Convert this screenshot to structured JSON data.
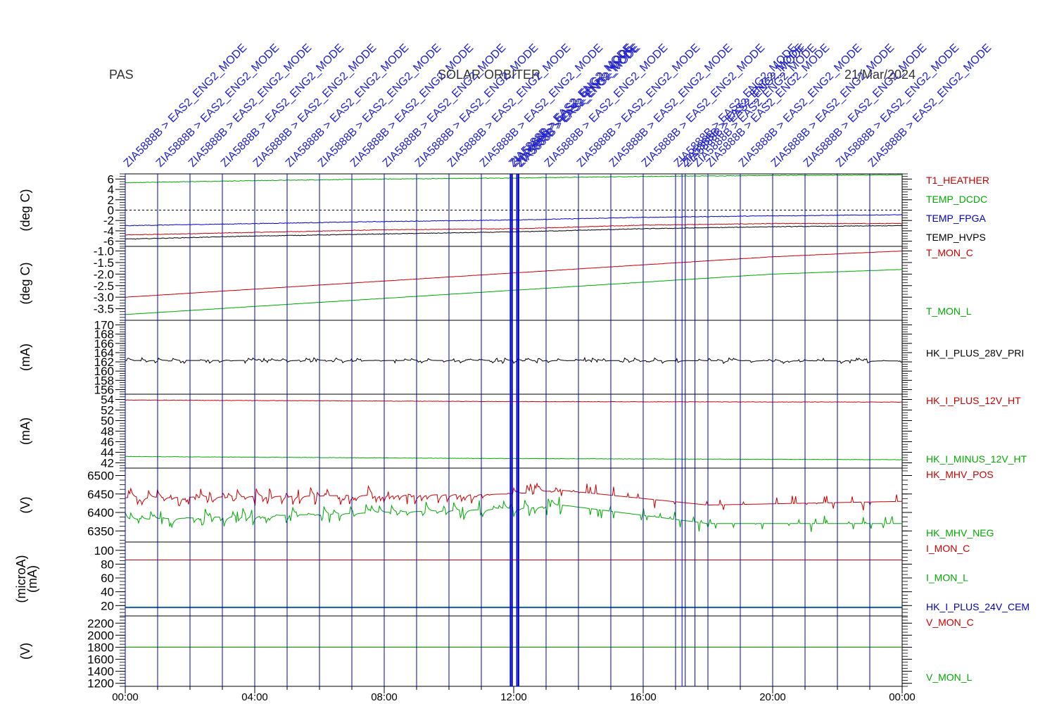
{
  "header": {
    "left": "PAS",
    "center": "SOLAR ORBITER",
    "right": "21/Mar/2024"
  },
  "colors": {
    "red": "#cc0000",
    "green": "#00aa00",
    "blue": "#0000cc",
    "black": "#000000",
    "mode": "#2222cc"
  },
  "event_label": "ZIA5888B > EAS2_ENG2_MODE",
  "chart_data": [
    {
      "type": "line",
      "panel": "temperature",
      "ylabel": "(deg C)",
      "ylim": [
        -7,
        7
      ],
      "ticks": [
        "6",
        "4",
        "2",
        "0",
        "-2",
        "-4",
        "-6"
      ],
      "tick_values": [
        6,
        4,
        2,
        0,
        -2,
        -4,
        -6
      ],
      "zero_line": true,
      "series": [
        {
          "name": "T1_HEATHER",
          "color": "#cc0000",
          "x": [
            0,
            4,
            8,
            12,
            16,
            20,
            24
          ],
          "y": [
            -4.8,
            -4.3,
            -3.8,
            -3.6,
            -2.9,
            -2.6,
            -2.6
          ]
        },
        {
          "name": "TEMP_DCDC",
          "color": "#00aa00",
          "x": [
            0,
            4,
            8,
            12,
            16,
            20,
            24
          ],
          "y": [
            5.3,
            5.7,
            6.0,
            6.2,
            6.5,
            6.7,
            6.8
          ]
        },
        {
          "name": "TEMP_FPGA",
          "color": "#0000cc",
          "x": [
            0,
            4,
            8,
            12,
            16,
            20,
            24
          ],
          "y": [
            -3.0,
            -2.6,
            -2.2,
            -1.9,
            -1.4,
            -1.1,
            -0.9
          ]
        },
        {
          "name": "TEMP_HVPS",
          "color": "#000000",
          "x": [
            0,
            4,
            8,
            12,
            16,
            20,
            24
          ],
          "y": [
            -5.6,
            -5.0,
            -4.6,
            -4.2,
            -3.6,
            -3.2,
            -3.0
          ]
        }
      ]
    },
    {
      "type": "line",
      "panel": "monitor-temperature",
      "ylabel": "(deg C)",
      "ylim": [
        -4.0,
        -0.8
      ],
      "ticks": [
        "-1.0",
        "-1.5",
        "-2.0",
        "-2.5",
        "-3.0",
        "-3.5"
      ],
      "tick_values": [
        -1.0,
        -1.5,
        -2.0,
        -2.5,
        -3.0,
        -3.5
      ],
      "series": [
        {
          "name": "T_MON_C",
          "color": "#cc0000",
          "x": [
            0,
            4,
            8,
            12,
            16,
            20,
            24
          ],
          "y": [
            -3.0,
            -2.65,
            -2.3,
            -1.95,
            -1.6,
            -1.25,
            -1.0
          ]
        },
        {
          "name": "T_MON_L",
          "color": "#00aa00",
          "x": [
            0,
            4,
            8,
            12,
            16,
            20,
            24
          ],
          "y": [
            -3.75,
            -3.4,
            -3.05,
            -2.7,
            -2.35,
            -2.0,
            -1.8
          ]
        }
      ]
    },
    {
      "type": "line",
      "panel": "primary-current",
      "ylabel": "(mA)",
      "ylim": [
        155,
        171
      ],
      "ticks": [
        "170",
        "168",
        "166",
        "164",
        "162",
        "160",
        "158",
        "156"
      ],
      "tick_values": [
        170,
        168,
        166,
        164,
        162,
        160,
        158,
        156
      ],
      "series": [
        {
          "name": "HK_I_PLUS_28V_PRI",
          "color": "#000000",
          "x": [
            0,
            12,
            24
          ],
          "y": [
            162.3,
            162.3,
            162.2
          ]
        }
      ]
    },
    {
      "type": "line",
      "panel": "heater-current",
      "ylabel": "(mA)",
      "ylim": [
        41,
        55
      ],
      "ticks": [
        "54",
        "52",
        "50",
        "48",
        "46",
        "44",
        "42"
      ],
      "tick_values": [
        54,
        52,
        50,
        48,
        46,
        44,
        42
      ],
      "series": [
        {
          "name": "HK_I_PLUS_12V_HT",
          "color": "#cc0000",
          "x": [
            0,
            12,
            24
          ],
          "y": [
            53.9,
            53.6,
            53.5
          ]
        },
        {
          "name": "HK_I_MINUS_12V_HT",
          "color": "#00aa00",
          "x": [
            0,
            12,
            24
          ],
          "y": [
            43.2,
            42.8,
            42.6
          ]
        }
      ]
    },
    {
      "type": "line",
      "panel": "high-voltage",
      "ylabel": "(V)",
      "ylim": [
        6320,
        6520
      ],
      "ticks": [
        "6500",
        "6450",
        "6400",
        "6350"
      ],
      "tick_values": [
        6500,
        6450,
        6400,
        6350
      ],
      "series": [
        {
          "name": "HK_MHV_POS",
          "color": "#cc0000",
          "x": [
            0,
            12,
            13.5,
            18,
            24
          ],
          "y": [
            6440,
            6450,
            6460,
            6420,
            6430
          ]
        },
        {
          "name": "HK_MHV_NEG",
          "color": "#00aa00",
          "x": [
            0,
            12,
            13.5,
            18,
            24
          ],
          "y": [
            6380,
            6410,
            6420,
            6370,
            6370
          ]
        }
      ]
    },
    {
      "type": "line",
      "panel": "monitor-current",
      "ylabel": "(microA)",
      "ylabel2": "(mA)",
      "ylim": [
        5,
        112
      ],
      "ticks": [
        "100",
        "80",
        "60",
        "40",
        "20"
      ],
      "tick_values": [
        100,
        80,
        60,
        40,
        20
      ],
      "series": [
        {
          "name": "I_MON_C",
          "color": "#cc0000",
          "x": [
            0,
            24
          ],
          "y": [
            86,
            86
          ]
        },
        {
          "name": "I_MON_L",
          "color": "#00aa00",
          "x": [
            0,
            24
          ],
          "y": [
            18,
            18
          ]
        },
        {
          "name": "HK_I_PLUS_24V_CEM",
          "color": "#0000cc",
          "x": [
            0,
            24
          ],
          "y": [
            17,
            17
          ]
        }
      ]
    },
    {
      "type": "line",
      "panel": "monitor-voltage",
      "ylabel": "(V)",
      "ylim": [
        1150,
        2320
      ],
      "ticks": [
        "2200",
        "2000",
        "1800",
        "1600",
        "1400",
        "1200"
      ],
      "tick_values": [
        2200,
        2000,
        1800,
        1600,
        1400,
        1200
      ],
      "series": [
        {
          "name": "V_MON_C",
          "color": "#cc0000",
          "x": [
            0,
            24
          ],
          "y": [
            1800,
            1800
          ]
        },
        {
          "name": "V_MON_L",
          "color": "#00aa00",
          "x": [
            0,
            24
          ],
          "y": [
            1800,
            1800
          ]
        }
      ]
    }
  ],
  "xaxis": {
    "xlim": [
      0,
      24
    ],
    "ticks": [
      {
        "x": 0,
        "label": "00:00"
      },
      {
        "x": 4,
        "label": "04:00"
      },
      {
        "x": 8,
        "label": "08:00"
      },
      {
        "x": 12,
        "label": "12:00"
      },
      {
        "x": 16,
        "label": "16:00"
      },
      {
        "x": 20,
        "label": "20:00"
      },
      {
        "x": 24,
        "label": "00:00"
      }
    ]
  },
  "events": [
    0,
    1,
    2,
    3,
    4,
    5,
    6,
    7,
    8,
    9,
    10,
    11,
    11.9,
    11.95,
    12.1,
    12.15,
    13,
    14,
    15,
    16,
    17,
    17.2,
    17.3,
    17.6,
    18,
    19,
    20,
    21,
    22,
    23
  ]
}
